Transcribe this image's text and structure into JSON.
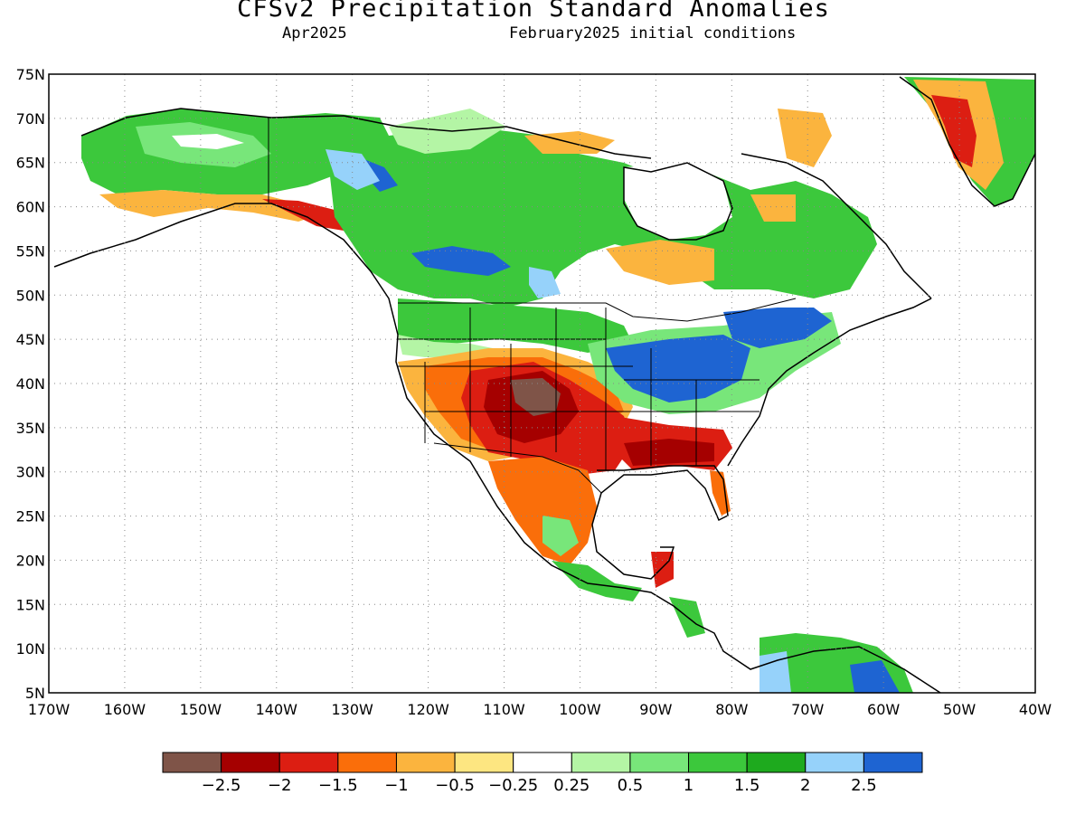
{
  "header": {
    "title": "CFSv2 Precipitation Standard Anomalies",
    "valid_month": "Apr2025",
    "initial_conditions": "February2025 initial conditions"
  },
  "axes": {
    "lat_labels": [
      "75N",
      "70N",
      "65N",
      "60N",
      "55N",
      "50N",
      "45N",
      "40N",
      "35N",
      "30N",
      "25N",
      "20N",
      "15N",
      "10N",
      "5N"
    ],
    "lon_labels": [
      "170W",
      "160W",
      "150W",
      "140W",
      "130W",
      "120W",
      "110W",
      "100W",
      "90W",
      "80W",
      "70W",
      "60W",
      "50W",
      "40W"
    ],
    "lat_range": [
      5,
      75
    ],
    "lon_range": [
      -170,
      -40
    ],
    "grid": "dotted"
  },
  "colorbar": {
    "colors": [
      "#7f5448",
      "#a50000",
      "#dc1e12",
      "#fa6e0a",
      "#fbb43e",
      "#fde681",
      "#ffffff",
      "#b4f5a5",
      "#78e67a",
      "#3cc83c",
      "#1eaa1e",
      "#96d2fa",
      "#1e64d2"
    ],
    "labels": [
      "-2.5",
      "-2",
      "-1.5",
      "-1",
      "-0.5",
      "-0.25",
      "0.25",
      "0.5",
      "1",
      "1.5",
      "2",
      "2.5"
    ]
  },
  "regions": {
    "southwest_us_anomaly": "dry (red/brown)",
    "ohio_valley_anomaly": "wet (blue)",
    "western_canada_anomaly": "wet (green/blue)",
    "greenland_anomaly": "dry (red/orange)"
  }
}
